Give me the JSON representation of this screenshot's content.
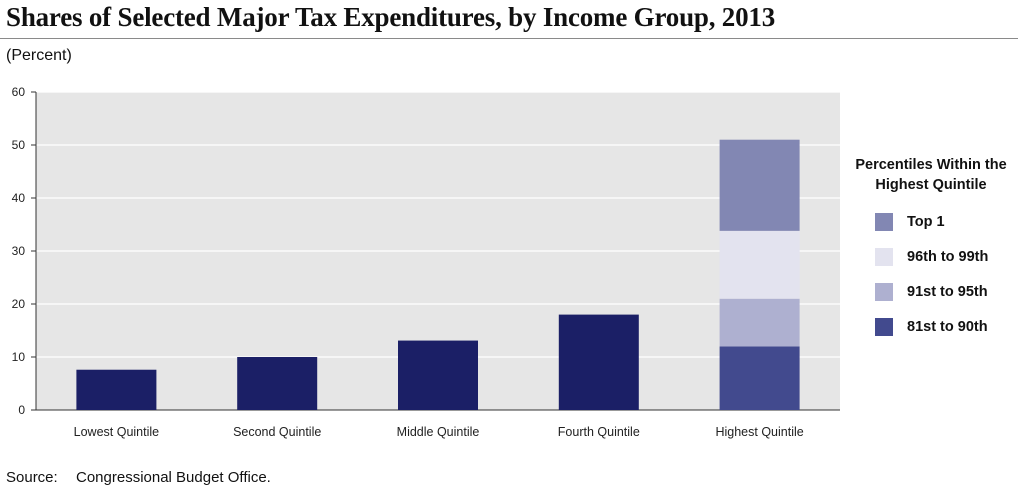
{
  "title": "Shares of Selected Major Tax Expenditures, by Income Group, 2013",
  "unit_label": "(Percent)",
  "source": {
    "label": "Source:",
    "text": "Congressional Budget Office."
  },
  "legend": {
    "title_line1": "Percentiles Within the",
    "title_line2": "Highest Quintile",
    "items": [
      {
        "label": "Top 1",
        "color": "#8287b3"
      },
      {
        "label": "96th to 99th",
        "color": "#e3e3ef"
      },
      {
        "label": "91st to 95th",
        "color": "#aeb0d0"
      },
      {
        "label": "81st to 90th",
        "color": "#424a8e"
      }
    ]
  },
  "colors": {
    "plot_background": "#e6e6e6",
    "quintile_bar": "#1b1f66",
    "gridline": "#ffffff"
  },
  "chart_data": {
    "type": "bar",
    "title": "Shares of Selected Major Tax Expenditures, by Income Group, 2013",
    "ylabel": "(Percent)",
    "xlabel": "",
    "ylim": [
      0,
      60
    ],
    "yticks": [
      0,
      10,
      20,
      30,
      40,
      50,
      60
    ],
    "grid": true,
    "legend_position": "right",
    "categories": [
      "Lowest Quintile",
      "Second Quintile",
      "Middle Quintile",
      "Fourth Quintile",
      "Highest Quintile"
    ],
    "values": [
      7.6,
      10.0,
      13.1,
      18.0,
      51.0
    ],
    "highest_quintile_stack": [
      {
        "name": "81st to 90th",
        "value": 12.0
      },
      {
        "name": "91st to 95th",
        "value": 9.0
      },
      {
        "name": "96th to 99th",
        "value": 12.8
      },
      {
        "name": "Top 1",
        "value": 17.2
      }
    ]
  }
}
